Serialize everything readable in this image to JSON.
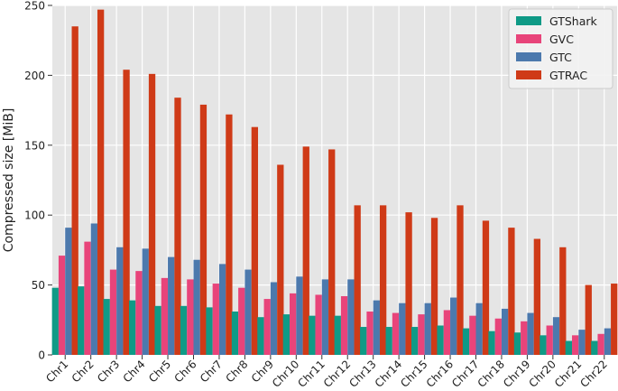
{
  "chart_data": {
    "type": "bar",
    "title": "",
    "xlabel": "",
    "ylabel": "Compressed size [MiB]",
    "ylim": [
      0,
      250
    ],
    "yticks": [
      0,
      50,
      100,
      150,
      200,
      250
    ],
    "grid": true,
    "legend_position": "top-right",
    "categories": [
      "Chr1",
      "Chr2",
      "Chr3",
      "Chr4",
      "Chr5",
      "Chr6",
      "Chr7",
      "Chr8",
      "Chr9",
      "Chr10",
      "Chr11",
      "Chr12",
      "Chr13",
      "Chr14",
      "Chr15",
      "Chr16",
      "Chr17",
      "Chr18",
      "Chr19",
      "Chr20",
      "Chr21",
      "Chr22"
    ],
    "series": [
      {
        "name": "GTShark",
        "color": "#0f9a86",
        "values": [
          48,
          49,
          40,
          39,
          35,
          35,
          34,
          31,
          27,
          29,
          28,
          28,
          20,
          20,
          20,
          21,
          19,
          17,
          16,
          14,
          10,
          10
        ]
      },
      {
        "name": "GVC",
        "color": "#e8447a",
        "values": [
          71,
          81,
          61,
          60,
          55,
          54,
          51,
          48,
          40,
          44,
          43,
          42,
          31,
          30,
          29,
          32,
          28,
          26,
          24,
          21,
          14,
          15
        ]
      },
      {
        "name": "GTC",
        "color": "#4c79ad",
        "values": [
          91,
          94,
          77,
          76,
          70,
          68,
          65,
          61,
          52,
          56,
          54,
          54,
          39,
          37,
          37,
          41,
          37,
          33,
          30,
          27,
          18,
          19
        ]
      },
      {
        "name": "GTRAC",
        "color": "#cf3a17",
        "values": [
          235,
          247,
          204,
          201,
          184,
          179,
          172,
          163,
          136,
          149,
          147,
          107,
          107,
          102,
          98,
          107,
          96,
          91,
          83,
          77,
          50,
          51
        ]
      }
    ]
  }
}
